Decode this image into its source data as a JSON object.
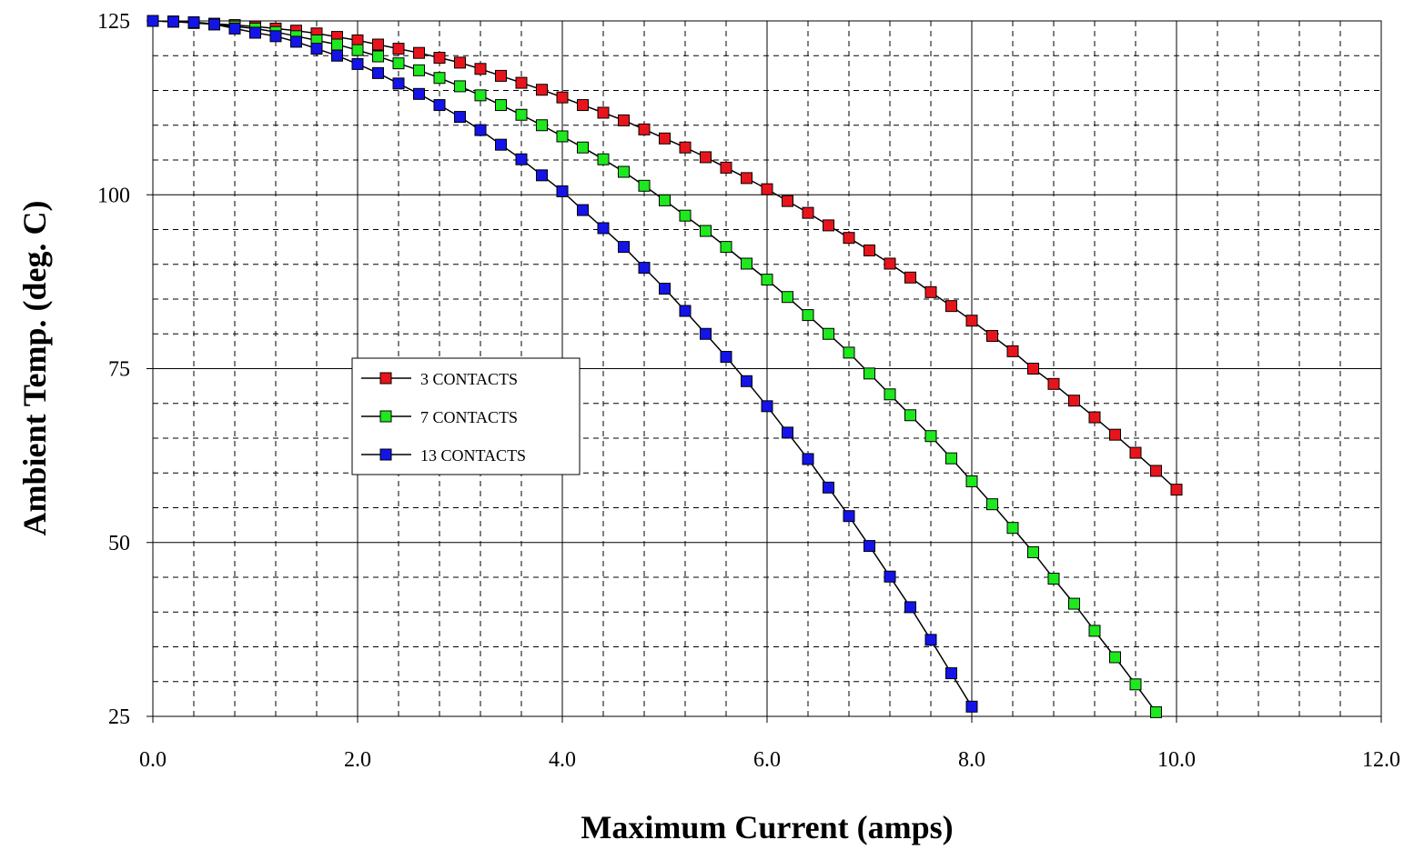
{
  "chart_data": {
    "type": "line",
    "xlabel": "Maximum Current (amps)",
    "ylabel": "Ambient Temp. (deg. C)",
    "xlim": [
      0,
      12
    ],
    "ylim": [
      25,
      125
    ],
    "x_ticks": [
      "0.0",
      "2.0",
      "4.0",
      "6.0",
      "8.0",
      "10.0",
      "12.0"
    ],
    "y_ticks": [
      "25",
      "50",
      "75",
      "100",
      "125"
    ],
    "major_grid": true,
    "minor_grid": "dashed",
    "legend_position": "center-left",
    "series": [
      {
        "name": "3 CONTACTS",
        "color": "#e8141c",
        "x": [
          0,
          0.2,
          0.4,
          0.6,
          0.8,
          1.0,
          1.2,
          1.4,
          1.6,
          1.8,
          2.0,
          2.2,
          2.4,
          2.6,
          2.8,
          3.0,
          3.2,
          3.4,
          3.6,
          3.8,
          4.0,
          4.2,
          4.4,
          4.6,
          4.8,
          5.0,
          5.2,
          5.4,
          5.6,
          5.8,
          6.0,
          6.2,
          6.4,
          6.6,
          6.8,
          7.0,
          7.2,
          7.4,
          7.6,
          7.8,
          8.0,
          8.2,
          8.4,
          8.6,
          8.8,
          9.0,
          9.2,
          9.4,
          9.6,
          9.8,
          10.0
        ],
        "y": [
          125.0,
          124.9,
          124.8,
          124.6,
          124.4,
          124.2,
          123.9,
          123.6,
          123.2,
          122.7,
          122.2,
          121.6,
          121.0,
          120.4,
          119.7,
          119.0,
          118.1,
          117.1,
          116.1,
          115.1,
          114.0,
          112.9,
          111.8,
          110.7,
          109.4,
          108.1,
          106.8,
          105.4,
          103.9,
          102.4,
          100.8,
          99.1,
          97.4,
          95.6,
          93.8,
          92.0,
          90.1,
          88.1,
          86.0,
          84.0,
          81.9,
          79.7,
          77.5,
          75.0,
          72.8,
          70.4,
          68.0,
          65.5,
          62.9,
          60.3,
          57.6
        ]
      },
      {
        "name": "7 CONTACTS",
        "color": "#1ee81e",
        "x": [
          0,
          0.2,
          0.4,
          0.6,
          0.8,
          1.0,
          1.2,
          1.4,
          1.6,
          1.8,
          2.0,
          2.2,
          2.4,
          2.6,
          2.8,
          3.0,
          3.2,
          3.4,
          3.6,
          3.8,
          4.0,
          4.2,
          4.4,
          4.6,
          4.8,
          5.0,
          5.2,
          5.4,
          5.6,
          5.8,
          6.0,
          6.2,
          6.4,
          6.6,
          6.8,
          7.0,
          7.2,
          7.4,
          7.6,
          7.8,
          8.0,
          8.2,
          8.4,
          8.6,
          8.8,
          9.0,
          9.2,
          9.4,
          9.6,
          9.8
        ],
        "y": [
          125.0,
          124.9,
          124.7,
          124.5,
          124.2,
          123.9,
          123.4,
          122.8,
          122.2,
          121.6,
          120.8,
          119.9,
          118.9,
          117.9,
          116.8,
          115.6,
          114.3,
          112.9,
          111.5,
          110.0,
          108.4,
          106.8,
          105.1,
          103.3,
          101.3,
          99.2,
          97.0,
          94.8,
          92.5,
          90.1,
          87.8,
          85.3,
          82.7,
          80.0,
          77.3,
          74.3,
          71.3,
          68.3,
          65.3,
          62.1,
          58.8,
          55.5,
          52.1,
          48.6,
          44.8,
          41.2,
          37.3,
          33.5,
          29.6,
          25.6
        ]
      },
      {
        "name": "13 CONTACTS",
        "color": "#1414e8",
        "x": [
          0,
          0.2,
          0.4,
          0.6,
          0.8,
          1.0,
          1.2,
          1.4,
          1.6,
          1.8,
          2.0,
          2.2,
          2.4,
          2.6,
          2.8,
          3.0,
          3.2,
          3.4,
          3.6,
          3.8,
          4.0,
          4.2,
          4.4,
          4.6,
          4.8,
          5.0,
          5.2,
          5.4,
          5.6,
          5.8,
          6.0,
          6.2,
          6.4,
          6.6,
          6.8,
          7.0,
          7.2,
          7.4,
          7.6,
          7.8,
          8.0
        ],
        "y": [
          125.0,
          124.9,
          124.8,
          124.5,
          123.9,
          123.3,
          122.8,
          122.0,
          121.0,
          120.0,
          118.8,
          117.5,
          116.0,
          114.5,
          112.9,
          111.2,
          109.3,
          107.2,
          105.1,
          102.8,
          100.5,
          97.8,
          95.2,
          92.5,
          89.5,
          86.5,
          83.3,
          80.0,
          76.7,
          73.2,
          69.6,
          65.8,
          62.0,
          57.9,
          53.8,
          49.5,
          45.1,
          40.7,
          36.0,
          31.2,
          26.4
        ]
      }
    ]
  }
}
